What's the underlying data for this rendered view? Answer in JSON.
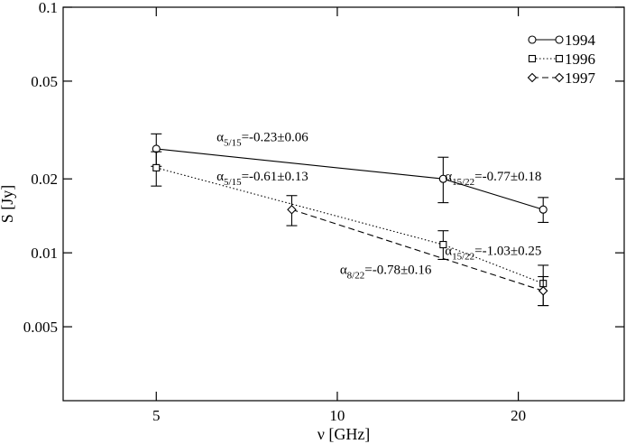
{
  "chart_data": {
    "type": "line",
    "title": "",
    "xlabel": "ν [GHz]",
    "ylabel": "S [Jy]",
    "xscale": "log",
    "yscale": "log",
    "xlim": [
      3.5,
      30
    ],
    "ylim": [
      0.0025,
      0.1
    ],
    "x_ticks": [
      {
        "value": 5,
        "label": "5"
      },
      {
        "value": 10,
        "label": "10"
      },
      {
        "value": 20,
        "label": "20"
      }
    ],
    "y_ticks": [
      {
        "value": 0.1,
        "label": "0.1"
      },
      {
        "value": 0.05,
        "label": "0.05"
      },
      {
        "value": 0.02,
        "label": "0.02"
      },
      {
        "value": 0.01,
        "label": "0.01"
      },
      {
        "value": 0.005,
        "label": "0.005"
      }
    ],
    "grid": false,
    "legend_position": "top-right",
    "series": [
      {
        "name": "1994",
        "marker": "circle",
        "line_style": "solid",
        "points": [
          {
            "x": 5,
            "y": 0.0265,
            "err_low": 0.0225,
            "err_high": 0.0305
          },
          {
            "x": 15,
            "y": 0.02,
            "err_low": 0.016,
            "err_high": 0.0245
          },
          {
            "x": 22,
            "y": 0.015,
            "err_low": 0.0133,
            "err_high": 0.0168
          }
        ]
      },
      {
        "name": "1996",
        "marker": "square",
        "line_style": "dotted",
        "points": [
          {
            "x": 5,
            "y": 0.0222,
            "err_low": 0.0187,
            "err_high": 0.0258
          },
          {
            "x": 15,
            "y": 0.0108,
            "err_low": 0.0094,
            "err_high": 0.0123
          },
          {
            "x": 22,
            "y": 0.0075,
            "err_low": 0.0061,
            "err_high": 0.0089
          }
        ]
      },
      {
        "name": "1997",
        "marker": "diamond",
        "line_style": "dashed",
        "points": [
          {
            "x": 8.4,
            "y": 0.015,
            "err_low": 0.0129,
            "err_high": 0.0171
          },
          {
            "x": 22,
            "y": 0.007,
            "err_low": 0.0061,
            "err_high": 0.008
          }
        ]
      }
    ],
    "annotations": [
      {
        "symbol": "α",
        "sub": "5/15",
        "text": "=-0.23±0.06",
        "x": 6.3,
        "y": 0.0285
      },
      {
        "symbol": "α",
        "sub": "5/15",
        "text": "=-0.61±0.13",
        "x": 6.3,
        "y": 0.0197
      },
      {
        "symbol": "α",
        "sub": "15/22",
        "text": "=-0.77±0.18",
        "x": 15.1,
        "y": 0.0197
      },
      {
        "symbol": "α",
        "sub": "15/22",
        "text": "=-1.03±0.25",
        "x": 15.1,
        "y": 0.0098
      },
      {
        "symbol": "α",
        "sub": "8/22",
        "text": "=-0.78±0.16",
        "x": 10.1,
        "y": 0.0082
      }
    ]
  }
}
